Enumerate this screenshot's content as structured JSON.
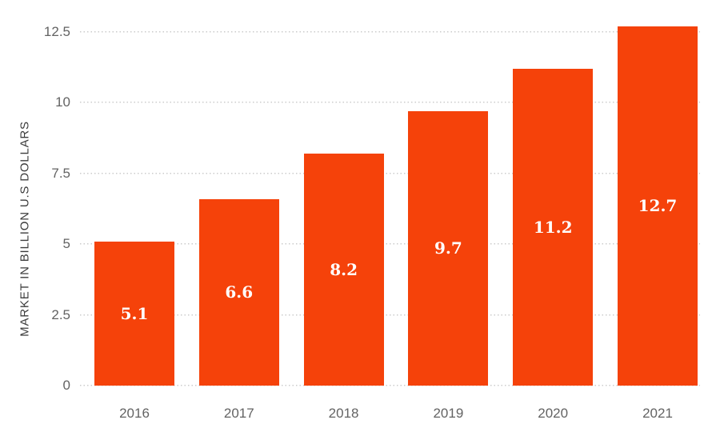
{
  "chart_data": {
    "type": "bar",
    "title": "",
    "xlabel": "",
    "ylabel": "MARKET IN BILLION U.S DOLLARS",
    "categories": [
      "2016",
      "2017",
      "2018",
      "2019",
      "2020",
      "2021"
    ],
    "values": [
      5.1,
      6.6,
      8.2,
      9.7,
      11.2,
      12.7
    ],
    "value_labels": [
      "5.1",
      "6.6",
      "8.2",
      "9.7",
      "11.2",
      "12.7"
    ],
    "yticks": [
      0,
      2.5,
      5,
      7.5,
      10,
      12.5
    ],
    "ytick_labels": [
      "0",
      "2.5",
      "5",
      "7.5",
      "10",
      "12.5"
    ],
    "ylim": [
      0,
      12.5
    ],
    "grid": "horizontal-dotted",
    "legend": "none",
    "bar_value_label_position": "center-inside",
    "colors": {
      "bar": "#f5420a",
      "bar_value_label": "#ffffff",
      "gridline": "#cccccc",
      "axis_text": "#636363",
      "y_title_text": "#3c3c3c",
      "background": "#ffffff"
    }
  }
}
